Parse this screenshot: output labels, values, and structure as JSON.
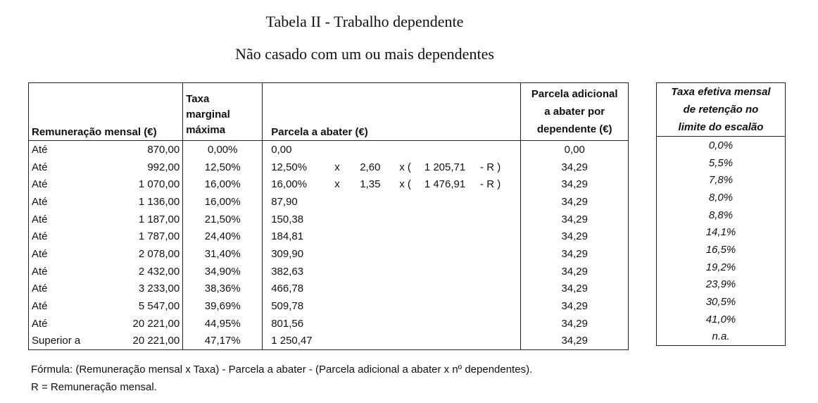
{
  "title": "Tabela II - Trabalho dependente",
  "subtitle": "Não casado com um ou mais dependentes",
  "headers": {
    "remuneracao": "Remuneração mensal (€)",
    "taxa": [
      "Taxa",
      "marginal",
      "máxima"
    ],
    "parcela": "Parcela a abater (€)",
    "adicional": [
      "Parcela adicional",
      "a abater por",
      "dependente (€)"
    ],
    "efetiva": [
      "Taxa efetiva mensal",
      "de retenção no",
      "limite do escalão"
    ]
  },
  "rows": [
    {
      "label": "Até",
      "limit": "870,00",
      "rate": "0,00%",
      "parcela": "0,00",
      "adicional": "0,00",
      "efetiva": "0,0%"
    },
    {
      "label": "Até",
      "limit": "992,00",
      "rate": "12,50%",
      "parcela": {
        "rate": "12,50%",
        "x": "x",
        "mult": "2,60",
        "open": "x (",
        "val": "1 205,71",
        "r": "- R )"
      },
      "adicional": "34,29",
      "efetiva": "5,5%"
    },
    {
      "label": "Até",
      "limit": "1 070,00",
      "rate": "16,00%",
      "parcela": {
        "rate": "16,00%",
        "x": "x",
        "mult": "1,35",
        "open": "x (",
        "val": "1 476,91",
        "r": "- R )"
      },
      "adicional": "34,29",
      "efetiva": "7,8%"
    },
    {
      "label": "Até",
      "limit": "1 136,00",
      "rate": "16,00%",
      "parcela": "87,90",
      "adicional": "34,29",
      "efetiva": "8,0%"
    },
    {
      "label": "Até",
      "limit": "1 187,00",
      "rate": "21,50%",
      "parcela": "150,38",
      "adicional": "34,29",
      "efetiva": "8,8%"
    },
    {
      "label": "Até",
      "limit": "1 787,00",
      "rate": "24,40%",
      "parcela": "184,81",
      "adicional": "34,29",
      "efetiva": "14,1%"
    },
    {
      "label": "Até",
      "limit": "2 078,00",
      "rate": "31,40%",
      "parcela": "309,90",
      "adicional": "34,29",
      "efetiva": "16,5%"
    },
    {
      "label": "Até",
      "limit": "2 432,00",
      "rate": "34,90%",
      "parcela": "382,63",
      "adicional": "34,29",
      "efetiva": "19,2%"
    },
    {
      "label": "Até",
      "limit": "3 233,00",
      "rate": "38,36%",
      "parcela": "466,78",
      "adicional": "34,29",
      "efetiva": "23,9%"
    },
    {
      "label": "Até",
      "limit": "5 547,00",
      "rate": "39,69%",
      "parcela": "509,78",
      "adicional": "34,29",
      "efetiva": "30,5%"
    },
    {
      "label": "Até",
      "limit": "20 221,00",
      "rate": "44,95%",
      "parcela": "801,56",
      "adicional": "34,29",
      "efetiva": "41,0%"
    },
    {
      "label": "Superior a",
      "limit": "20 221,00",
      "rate": "47,17%",
      "parcela": "1 250,47",
      "adicional": "34,29",
      "efetiva": "n.a."
    }
  ],
  "notes": [
    "Fórmula: (Remuneração mensal x Taxa) - Parcela a abater - (Parcela adicional a abater x nº dependentes).",
    "R = Remuneração mensal."
  ]
}
